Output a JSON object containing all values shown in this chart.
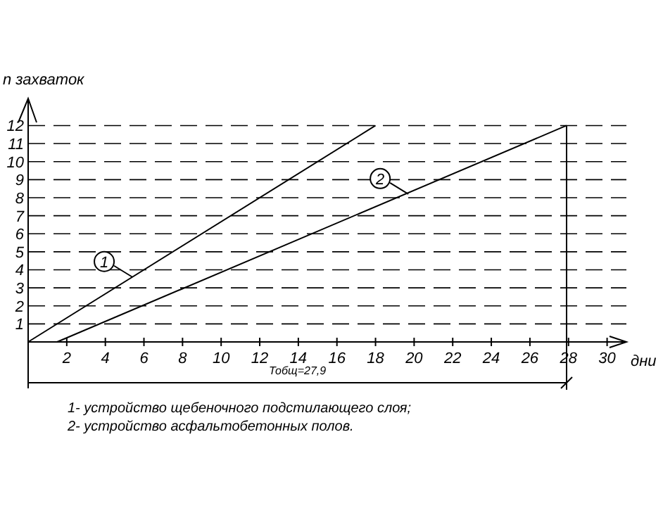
{
  "chart_data": {
    "type": "line",
    "ylabel": "n захваток",
    "xlabel": "дни",
    "xlim": [
      0,
      31
    ],
    "ylim": [
      0,
      13.5
    ],
    "xticks": [
      2,
      4,
      6,
      8,
      10,
      12,
      14,
      16,
      18,
      20,
      22,
      24,
      26,
      28,
      30
    ],
    "yticks": [
      1,
      2,
      3,
      4,
      5,
      6,
      7,
      8,
      9,
      10,
      11,
      12
    ],
    "grid": "y",
    "line_style": "solid",
    "marker": "none",
    "series": [
      {
        "color": "#000000",
        "x": [
          0,
          18
        ],
        "values": [
          0,
          12
        ]
      },
      {
        "color": "#000000",
        "x": [
          1.5,
          27.9
        ],
        "values": [
          0,
          12
        ]
      }
    ],
    "ref_lines": [
      {
        "axis": "x",
        "value": 27.9,
        "label": null
      }
    ],
    "annotations": [
      {
        "text": "1",
        "x": 5.4,
        "y": 3.6
      },
      {
        "text": "2",
        "x": 19.7,
        "y": 8.2
      },
      "Тобщ=27,9",
      "1- устройство щебеночного подстилающего слоя;",
      "2- устройство асфальтобетонных полов."
    ]
  }
}
